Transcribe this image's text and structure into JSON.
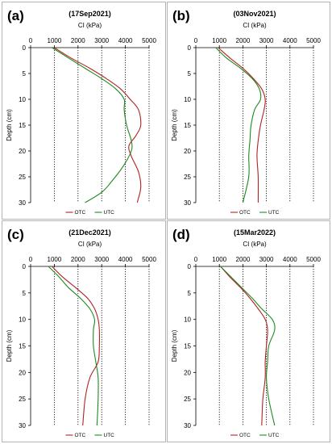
{
  "colors": {
    "otc": "#b22222",
    "utc": "#1e8a1e",
    "grid": "#000000"
  },
  "chart_data": [
    {
      "type": "line",
      "panel_label": "(a)",
      "title": "(17Sep2021)",
      "xlabel": "CI (kPa)",
      "ylabel": "Depth (cm)",
      "xlim": [
        0,
        5000
      ],
      "ylim": [
        0,
        30
      ],
      "xticks": [
        "0",
        "1000",
        "2000",
        "3000",
        "4000",
        "5000"
      ],
      "yticks": [
        "0",
        "5",
        "10",
        "15",
        "20",
        "25",
        "30"
      ],
      "y_inverted": true,
      "grid_x": true,
      "legend": "bottom",
      "series": [
        {
          "name": "OTC",
          "color": "#b22222",
          "x": [
            1000,
            1700,
            2500,
            3200,
            3800,
            4200,
            4550,
            4650,
            4450,
            4150,
            4250,
            4550,
            4650,
            4500
          ],
          "y": [
            0,
            2,
            4,
            6,
            8,
            10,
            12,
            15,
            17,
            19,
            21,
            24,
            27,
            30
          ]
        },
        {
          "name": "UTC",
          "color": "#1e8a1e",
          "x": [
            900,
            1600,
            2300,
            3000,
            3600,
            3950,
            3950,
            4050,
            4250,
            4250,
            3900,
            3400,
            3000,
            2300
          ],
          "y": [
            0,
            2,
            4,
            6,
            8,
            10,
            12,
            15,
            18,
            20,
            23,
            26,
            28,
            30
          ]
        }
      ]
    },
    {
      "type": "line",
      "panel_label": "(b)",
      "title": "(03Nov2021)",
      "xlabel": "CI (kPa)",
      "ylabel": "Depth (cm)",
      "xlim": [
        0,
        5000
      ],
      "ylim": [
        0,
        30
      ],
      "xticks": [
        "0",
        "1000",
        "2000",
        "3000",
        "4000",
        "5000"
      ],
      "yticks": [
        "0",
        "5",
        "10",
        "15",
        "20",
        "25",
        "30"
      ],
      "y_inverted": true,
      "grid_x": true,
      "legend": "bottom",
      "series": [
        {
          "name": "OTC",
          "color": "#b22222",
          "x": [
            950,
            1450,
            2000,
            2450,
            2800,
            2950,
            2900,
            2750,
            2650,
            2600,
            2650,
            2650
          ],
          "y": [
            0,
            2,
            4,
            6,
            8,
            10,
            12,
            15,
            18,
            21,
            25,
            30
          ]
        },
        {
          "name": "UTC",
          "color": "#1e8a1e",
          "x": [
            850,
            1300,
            1900,
            2400,
            2700,
            2750,
            2500,
            2350,
            2300,
            2250,
            2250,
            2000
          ],
          "y": [
            0,
            2,
            4,
            6,
            8,
            10,
            12,
            15,
            18,
            21,
            25,
            30
          ]
        }
      ]
    },
    {
      "type": "line",
      "panel_label": "(c)",
      "title": "(21Dec2021)",
      "xlabel": "CI (kPa)",
      "ylabel": "Depth (cm)",
      "xlim": [
        0,
        5000
      ],
      "ylim": [
        0,
        30
      ],
      "xticks": [
        "0",
        "1000",
        "2000",
        "3000",
        "4000",
        "5000"
      ],
      "yticks": [
        "0",
        "5",
        "10",
        "15",
        "20",
        "25",
        "30"
      ],
      "y_inverted": true,
      "grid_x": true,
      "legend": "bottom",
      "series": [
        {
          "name": "OTC",
          "color": "#b22222",
          "x": [
            900,
            1350,
            1900,
            2400,
            2700,
            2850,
            2900,
            2900,
            2850,
            2500,
            2300,
            2200
          ],
          "y": [
            0,
            2,
            4,
            6,
            8,
            10,
            12,
            15,
            18,
            21,
            25,
            30
          ]
        },
        {
          "name": "UTC",
          "color": "#1e8a1e",
          "x": [
            750,
            1200,
            1600,
            2100,
            2500,
            2700,
            2650,
            2650,
            2750,
            2850,
            2850,
            2800
          ],
          "y": [
            0,
            2,
            4,
            6,
            8,
            10,
            12,
            15,
            18,
            21,
            25,
            30
          ]
        }
      ]
    },
    {
      "type": "line",
      "panel_label": "(d)",
      "title": "(15Mar2022)",
      "xlabel": "CI (kPa)",
      "ylabel": "Depth (cm)",
      "xlim": [
        0,
        5000
      ],
      "ylim": [
        0,
        30
      ],
      "xticks": [
        "0",
        "1000",
        "2000",
        "3000",
        "4000",
        "5000"
      ],
      "yticks": [
        "0",
        "5",
        "10",
        "15",
        "20",
        "25",
        "30"
      ],
      "y_inverted": true,
      "grid_x": true,
      "legend": "bottom",
      "series": [
        {
          "name": "OTC",
          "color": "#b22222",
          "x": [
            1050,
            1450,
            1900,
            2300,
            2650,
            2950,
            3050,
            3000,
            2950,
            2950,
            2850,
            2800
          ],
          "y": [
            0,
            2,
            4,
            6,
            8,
            10,
            12,
            15,
            18,
            21,
            25,
            30
          ]
        },
        {
          "name": "UTC",
          "color": "#1e8a1e",
          "x": [
            1050,
            1500,
            1950,
            2400,
            2800,
            3250,
            3350,
            3100,
            3050,
            3000,
            3100,
            3350
          ],
          "y": [
            0,
            2,
            4,
            6,
            8,
            10,
            12,
            15,
            18,
            21,
            25,
            30
          ]
        }
      ]
    }
  ]
}
